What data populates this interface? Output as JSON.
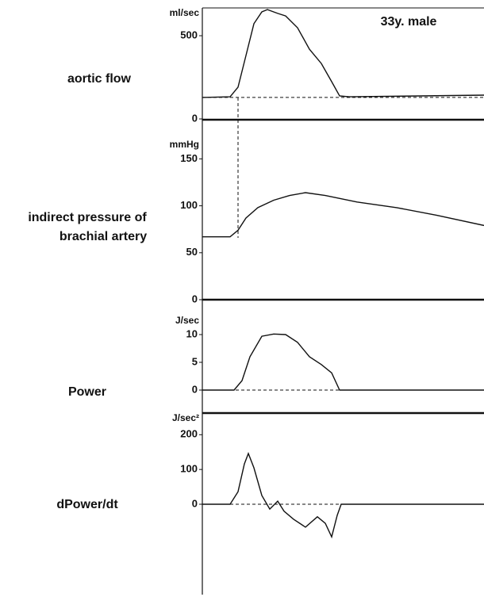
{
  "chart_data": [
    {
      "type": "line",
      "label": "aortic flow",
      "y_label": "ml/sec",
      "annotation": "33y.  male",
      "x": [
        0,
        35,
        45,
        55,
        65,
        75,
        82,
        95,
        105,
        120,
        135,
        150,
        163,
        173,
        185,
        355
      ],
      "values": [
        129,
        133,
        191,
        381,
        572,
        643,
        657,
        634,
        619,
        548,
        419,
        333,
        224,
        138,
        133,
        143
      ],
      "baseline": 129,
      "color": "#111111",
      "xlim": [
        0,
        355
      ],
      "ylim": [
        0,
        667
      ],
      "yticks": [
        0,
        500
      ]
    },
    {
      "type": "line",
      "label_lines": [
        "indirect pressure of",
        "brachial artery"
      ],
      "y_label": "mmHg",
      "x": [
        0,
        35,
        45,
        55,
        70,
        90,
        110,
        130,
        155,
        195,
        245,
        295,
        355
      ],
      "values": [
        67,
        67,
        74,
        87,
        98,
        106,
        111,
        114,
        111,
        104,
        98,
        90,
        79
      ],
      "color": "#111111",
      "xlim": [
        0,
        355
      ],
      "ylim": [
        0,
        190
      ],
      "yticks": [
        0,
        50,
        100,
        150
      ]
    },
    {
      "type": "line",
      "label": "Power",
      "y_label": "J/sec",
      "x": [
        0,
        40,
        50,
        60,
        75,
        90,
        105,
        120,
        135,
        150,
        163,
        173,
        355
      ],
      "values": [
        0,
        0,
        1.7,
        6,
        9.7,
        10.1,
        10,
        8.6,
        6,
        4.6,
        3.1,
        0,
        0
      ],
      "baseline": 0,
      "color": "#111111",
      "xlim": [
        0,
        355
      ],
      "ylim": [
        -4,
        16
      ],
      "yticks": [
        0,
        5,
        10
      ]
    },
    {
      "type": "line",
      "label": "dPower/dt",
      "y_label": "J/sec²",
      "x": [
        0,
        35,
        45,
        53,
        58,
        65,
        75,
        85,
        95,
        103,
        115,
        130,
        145,
        155,
        163,
        170,
        175,
        355
      ],
      "values": [
        0,
        0,
        36,
        116,
        146,
        105,
        25,
        -14,
        9,
        -20,
        -43,
        -66,
        -36,
        -55,
        -94,
        -32,
        0,
        0
      ],
      "baseline": 0,
      "color": "#111111",
      "xlim": [
        0,
        355
      ],
      "ylim": [
        -260,
        260
      ],
      "yticks": [
        0,
        100,
        200
      ]
    }
  ]
}
